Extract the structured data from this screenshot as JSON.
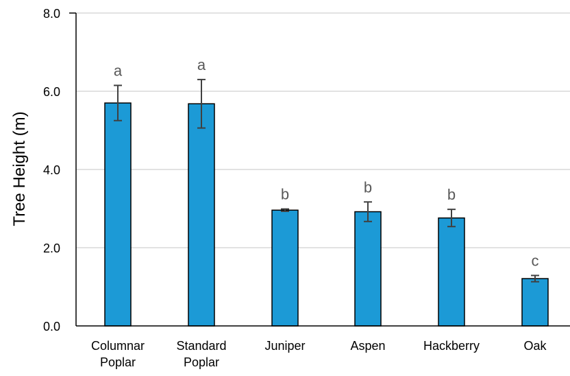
{
  "chart_data": {
    "type": "bar",
    "title": "",
    "xlabel": "",
    "ylabel": "Tree Height (m)",
    "ylim": [
      0,
      8
    ],
    "yticks": [
      "0.0",
      "2.0",
      "4.0",
      "6.0",
      "8.0"
    ],
    "ytick_values": [
      0,
      2,
      4,
      6,
      8
    ],
    "grid": true,
    "categories": [
      [
        "Columnar",
        "Poplar"
      ],
      [
        "Standard",
        "Poplar"
      ],
      [
        "Juniper"
      ],
      [
        "Aspen"
      ],
      [
        "Hackberry"
      ],
      [
        "Oak"
      ]
    ],
    "values": [
      5.7,
      5.68,
      2.96,
      2.92,
      2.76,
      1.21
    ],
    "errors": [
      0.45,
      0.62,
      0.03,
      0.25,
      0.22,
      0.08
    ],
    "significance_letters": [
      "a",
      "a",
      "b",
      "b",
      "b",
      "c"
    ],
    "colors": {
      "bar": "#1C9AD6",
      "bar_edge": "#000000",
      "error_bar": "#404040",
      "grid": "#D9D9D9",
      "letters": "#595959"
    }
  }
}
